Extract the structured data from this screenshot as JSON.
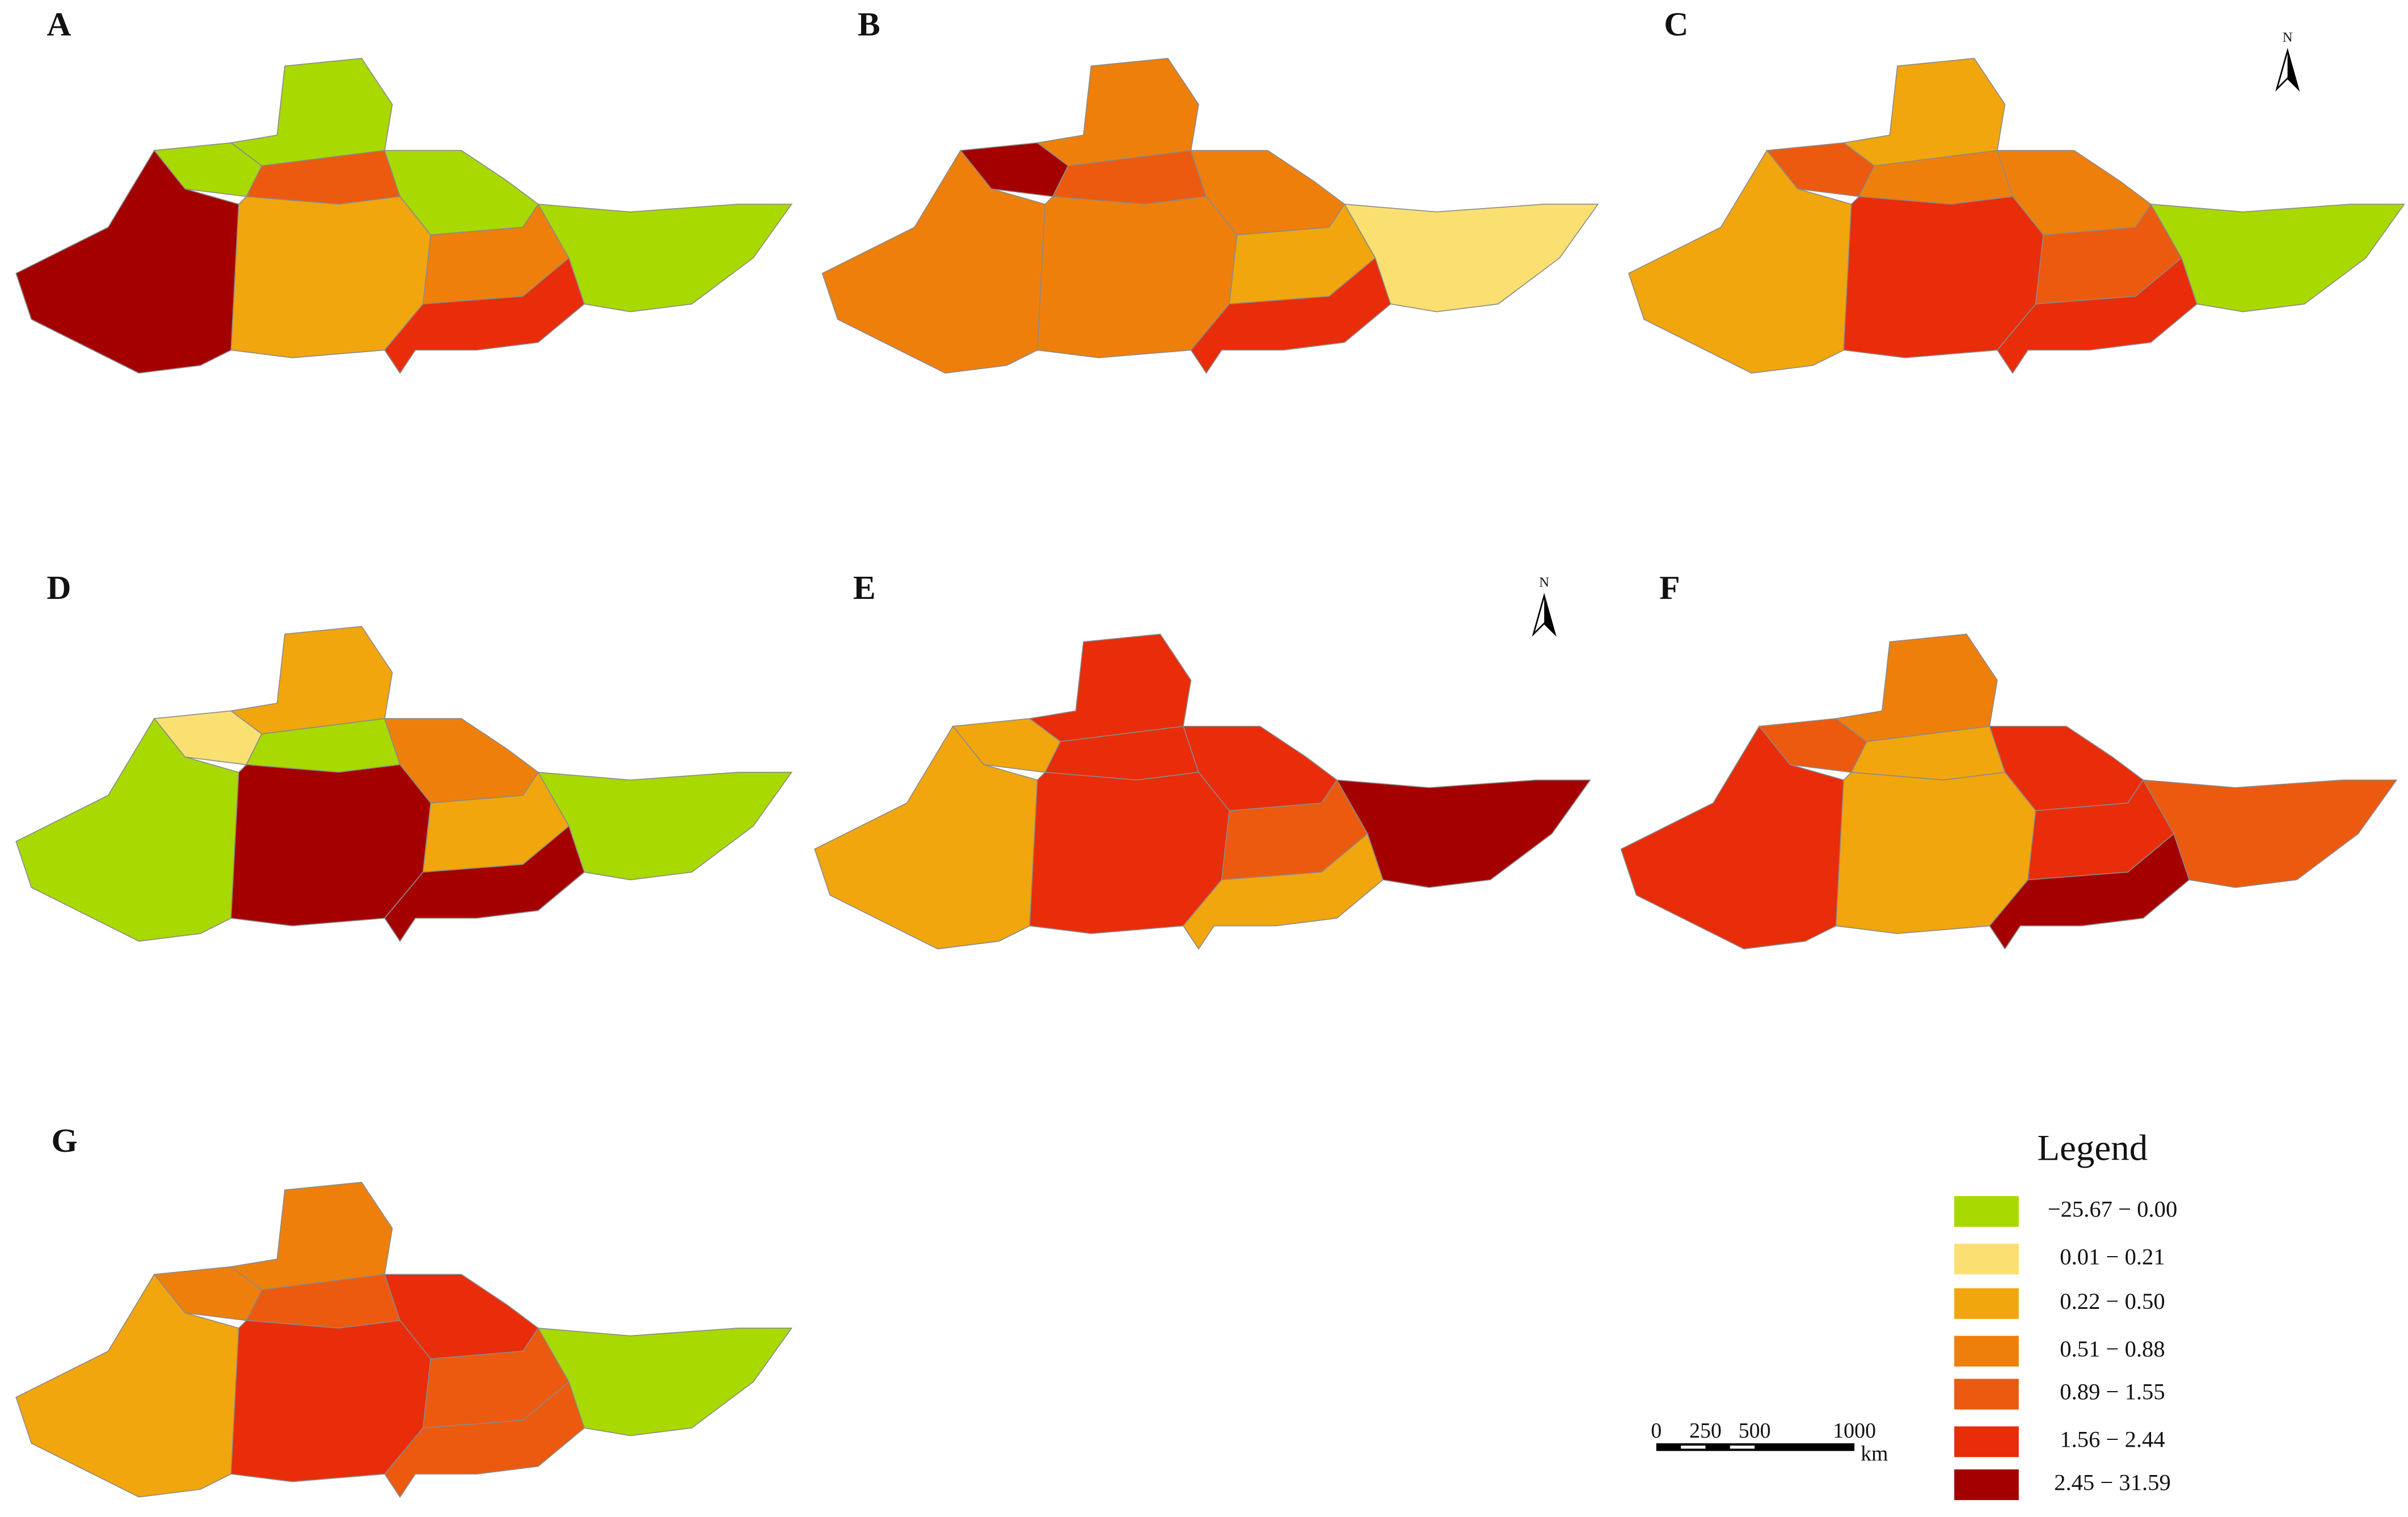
{
  "panels": [
    {
      "label": "A"
    },
    {
      "label": "B"
    },
    {
      "label": "C"
    },
    {
      "label": "D"
    },
    {
      "label": "E"
    },
    {
      "label": "F"
    },
    {
      "label": "G"
    }
  ],
  "north_arrows": [
    "N",
    "N"
  ],
  "legend": {
    "title": "Legend",
    "classes": [
      {
        "label": "−25.67 − 0.00",
        "color": "#a8d900"
      },
      {
        "label": "0.01 − 0.21",
        "color": "#f9e071"
      },
      {
        "label": "0.22 − 0.50",
        "color": "#f2a60d"
      },
      {
        "label": "0.51 − 0.88",
        "color": "#ef7f0b"
      },
      {
        "label": "0.89 − 1.55",
        "color": "#ec5a0f"
      },
      {
        "label": "1.56 − 2.44",
        "color": "#e92c0a"
      },
      {
        "label": "2.45 − 31.59",
        "color": "#a50000"
      }
    ]
  },
  "scale_bar": {
    "ticks": [
      "0",
      "250",
      "500",
      "1000"
    ],
    "unit": "km"
  }
}
